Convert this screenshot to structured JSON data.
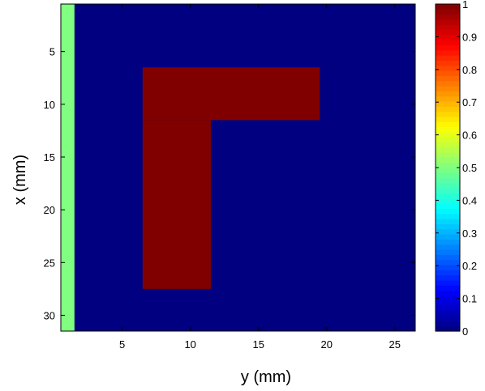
{
  "chart_data": {
    "type": "heatmap",
    "title": "",
    "xlabel": "y (mm)",
    "ylabel": "x (mm)",
    "x_range": [
      0.5,
      26.5
    ],
    "y_range": [
      0.5,
      31.5
    ],
    "y_direction": "reversed (1 at top)",
    "x_ticks": [
      5,
      10,
      15,
      20,
      25
    ],
    "y_ticks": [
      5,
      10,
      15,
      20,
      25,
      30
    ],
    "background_value": 0,
    "regions": [
      {
        "label": "left strip",
        "value": 0.5,
        "x_from": 1,
        "x_to": 1,
        "y_from": 1,
        "y_to": 31
      },
      {
        "label": "L-shape top bar",
        "value": 1,
        "x_from": 7,
        "x_to": 19,
        "y_from": 7,
        "y_to": 11
      },
      {
        "label": "L-shape vertical bar",
        "value": 1,
        "x_from": 7,
        "x_to": 11,
        "y_from": 12,
        "y_to": 27
      }
    ],
    "colorbar": {
      "colormap": "jet",
      "range": [
        0,
        1
      ],
      "ticks": [
        "0",
        "0.1",
        "0.2",
        "0.3",
        "0.4",
        "0.5",
        "0.6",
        "0.7",
        "0.8",
        "0.9",
        "1"
      ]
    },
    "grid": false,
    "legend": "none"
  }
}
